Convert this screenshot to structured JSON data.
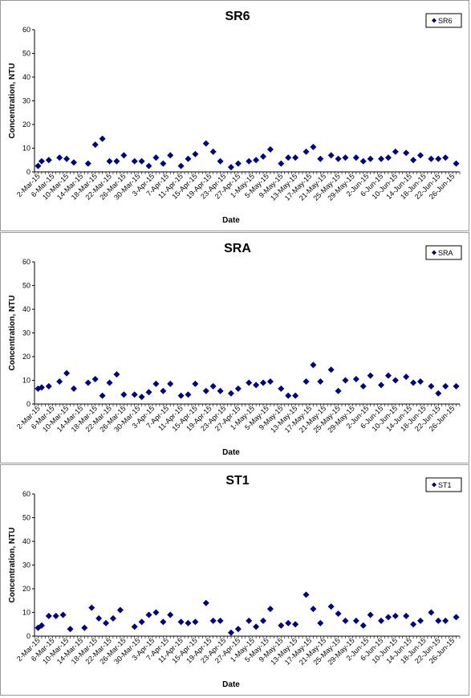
{
  "chart_data": [
    {
      "type": "scatter",
      "title": "SR6",
      "xlabel": "Date",
      "ylabel": "Concentration, NTU",
      "ylim": [
        0,
        60
      ],
      "yticks": [
        "0",
        "10",
        "20",
        "30",
        "40",
        "50",
        "60"
      ],
      "xtick_labels": [
        "2-Mar-15",
        "6-Mar-15",
        "10-Mar-15",
        "14-Mar-15",
        "18-Mar-15",
        "22-Mar-15",
        "26-Mar-15",
        "30-Mar-15",
        "3-Apr-15",
        "7-Apr-15",
        "11-Apr-15",
        "15-Apr-15",
        "19-Apr-15",
        "23-Apr-15",
        "27-Apr-15",
        "1-May-15",
        "5-May-15",
        "9-May-15",
        "13-May-15",
        "17-May-15",
        "21-May-15",
        "25-May-15",
        "29-May-15",
        "2-Jun-15",
        "6-Jun-15",
        "10-Jun-15",
        "14-Jun-15",
        "18-Jun-15",
        "22-Jun-15",
        "26-Jun-15"
      ],
      "grid": false,
      "legend": "top-right",
      "series": [
        {
          "name": "SR6",
          "color": "#000080",
          "points": [
            [
              "2-Mar-15",
              2.5
            ],
            [
              "3-Mar-15",
              4.5
            ],
            [
              "5-Mar-15",
              5
            ],
            [
              "8-Mar-15",
              6
            ],
            [
              "10-Mar-15",
              5.5
            ],
            [
              "12-Mar-15",
              4
            ],
            [
              "16-Mar-15",
              3.5
            ],
            [
              "18-Mar-15",
              11.5
            ],
            [
              "20-Mar-15",
              14
            ],
            [
              "22-Mar-15",
              4.5
            ],
            [
              "24-Mar-15",
              4.5
            ],
            [
              "26-Mar-15",
              7
            ],
            [
              "29-Mar-15",
              4.5
            ],
            [
              "31-Mar-15",
              4.5
            ],
            [
              "2-Apr-15",
              2.5
            ],
            [
              "4-Apr-15",
              6
            ],
            [
              "6-Apr-15",
              3.5
            ],
            [
              "8-Apr-15",
              7
            ],
            [
              "11-Apr-15",
              2.5
            ],
            [
              "13-Apr-15",
              5.5
            ],
            [
              "15-Apr-15",
              7.5
            ],
            [
              "18-Apr-15",
              12
            ],
            [
              "20-Apr-15",
              8.5
            ],
            [
              "22-Apr-15",
              4.5
            ],
            [
              "25-Apr-15",
              2
            ],
            [
              "27-Apr-15",
              3.5
            ],
            [
              "30-Apr-15",
              4.5
            ],
            [
              "2-May-15",
              5
            ],
            [
              "4-May-15",
              6.5
            ],
            [
              "6-May-15",
              9.5
            ],
            [
              "9-May-15",
              3.5
            ],
            [
              "11-May-15",
              6
            ],
            [
              "13-May-15",
              6
            ],
            [
              "16-May-15",
              8.5
            ],
            [
              "18-May-15",
              10.5
            ],
            [
              "20-May-15",
              5.5
            ],
            [
              "23-May-15",
              7
            ],
            [
              "25-May-15",
              5.5
            ],
            [
              "27-May-15",
              6
            ],
            [
              "30-May-15",
              6
            ],
            [
              "1-Jun-15",
              4.5
            ],
            [
              "3-Jun-15",
              5.5
            ],
            [
              "6-Jun-15",
              5.5
            ],
            [
              "8-Jun-15",
              6
            ],
            [
              "10-Jun-15",
              8.5
            ],
            [
              "13-Jun-15",
              8
            ],
            [
              "15-Jun-15",
              5
            ],
            [
              "17-Jun-15",
              7
            ],
            [
              "20-Jun-15",
              5.5
            ],
            [
              "22-Jun-15",
              5.5
            ],
            [
              "24-Jun-15",
              6
            ],
            [
              "27-Jun-15",
              3.5
            ]
          ]
        }
      ]
    },
    {
      "type": "scatter",
      "title": "SRA",
      "xlabel": "Date",
      "ylabel": "Concentration, NTU",
      "ylim": [
        0,
        60
      ],
      "yticks": [
        "0",
        "10",
        "20",
        "30",
        "40",
        "50",
        "60"
      ],
      "xtick_labels": [
        "2-Mar-15",
        "6-Mar-15",
        "10-Mar-15",
        "14-Mar-15",
        "18-Mar-15",
        "22-Mar-15",
        "26-Mar-15",
        "30-Mar-15",
        "3-Apr-15",
        "7-Apr-15",
        "11-Apr-15",
        "15-Apr-15",
        "19-Apr-15",
        "23-Apr-15",
        "27-Apr-15",
        "1-May-15",
        "5-May-15",
        "9-May-15",
        "13-May-15",
        "17-May-15",
        "21-May-15",
        "25-May-15",
        "29-May-15",
        "2-Jun-15",
        "6-Jun-15",
        "10-Jun-15",
        "14-Jun-15",
        "18-Jun-15",
        "22-Jun-15",
        "26-Jun-15"
      ],
      "grid": false,
      "legend": "top-right",
      "series": [
        {
          "name": "SRA",
          "color": "#000080",
          "points": [
            [
              "2-Mar-15",
              6.5
            ],
            [
              "3-Mar-15",
              7
            ],
            [
              "5-Mar-15",
              7.5
            ],
            [
              "8-Mar-15",
              9.5
            ],
            [
              "10-Mar-15",
              13
            ],
            [
              "12-Mar-15",
              6.5
            ],
            [
              "16-Mar-15",
              9
            ],
            [
              "18-Mar-15",
              10.5
            ],
            [
              "20-Mar-15",
              3.5
            ],
            [
              "22-Mar-15",
              9
            ],
            [
              "24-Mar-15",
              12.5
            ],
            [
              "26-Mar-15",
              4
            ],
            [
              "29-Mar-15",
              4
            ],
            [
              "31-Mar-15",
              3
            ],
            [
              "2-Apr-15",
              5
            ],
            [
              "4-Apr-15",
              8.5
            ],
            [
              "6-Apr-15",
              5.5
            ],
            [
              "8-Apr-15",
              8.5
            ],
            [
              "11-Apr-15",
              3.5
            ],
            [
              "13-Apr-15",
              4
            ],
            [
              "15-Apr-15",
              8.5
            ],
            [
              "18-Apr-15",
              5.5
            ],
            [
              "20-Apr-15",
              7.5
            ],
            [
              "22-Apr-15",
              5.5
            ],
            [
              "25-Apr-15",
              4.5
            ],
            [
              "27-Apr-15",
              6.5
            ],
            [
              "30-Apr-15",
              9
            ],
            [
              "2-May-15",
              8
            ],
            [
              "4-May-15",
              9
            ],
            [
              "6-May-15",
              9.5
            ],
            [
              "9-May-15",
              6.5
            ],
            [
              "11-May-15",
              3.5
            ],
            [
              "13-May-15",
              3.5
            ],
            [
              "16-May-15",
              9.5
            ],
            [
              "18-May-15",
              16.5
            ],
            [
              "20-May-15",
              9.5
            ],
            [
              "23-May-15",
              14.5
            ],
            [
              "25-May-15",
              5.5
            ],
            [
              "27-May-15",
              10
            ],
            [
              "30-May-15",
              10.5
            ],
            [
              "1-Jun-15",
              7.5
            ],
            [
              "3-Jun-15",
              12
            ],
            [
              "6-Jun-15",
              8
            ],
            [
              "8-Jun-15",
              12
            ],
            [
              "10-Jun-15",
              10
            ],
            [
              "13-Jun-15",
              11.5
            ],
            [
              "15-Jun-15",
              9
            ],
            [
              "17-Jun-15",
              9.5
            ],
            [
              "20-Jun-15",
              7.5
            ],
            [
              "22-Jun-15",
              4.5
            ],
            [
              "24-Jun-15",
              7.5
            ],
            [
              "27-Jun-15",
              7.5
            ]
          ]
        }
      ]
    },
    {
      "type": "scatter",
      "title": "ST1",
      "xlabel": "Date",
      "ylabel": "Concentration, NTU",
      "ylim": [
        0,
        60
      ],
      "yticks": [
        "0",
        "10",
        "20",
        "30",
        "40",
        "50",
        "60"
      ],
      "xtick_labels": [
        "2-Mar-15",
        "6-Mar-15",
        "10-Mar-15",
        "14-Mar-15",
        "18-Mar-15",
        "22-Mar-15",
        "26-Mar-15",
        "30-Mar-15",
        "3-Apr-15",
        "7-Apr-15",
        "11-Apr-15",
        "15-Apr-15",
        "19-Apr-15",
        "23-Apr-15",
        "27-Apr-15",
        "1-May-15",
        "5-May-15",
        "9-May-15",
        "13-May-15",
        "17-May-15",
        "21-May-15",
        "25-May-15",
        "29-May-15",
        "2-Jun-15",
        "6-Jun-15",
        "10-Jun-15",
        "14-Jun-15",
        "18-Jun-15",
        "22-Jun-15",
        "26-Jun-15"
      ],
      "grid": false,
      "legend": "top-right",
      "series": [
        {
          "name": "ST1",
          "color": "#000080",
          "points": [
            [
              "2-Mar-15",
              3.5
            ],
            [
              "3-Mar-15",
              4.5
            ],
            [
              "5-Mar-15",
              8.5
            ],
            [
              "7-Mar-15",
              8.5
            ],
            [
              "9-Mar-15",
              9
            ],
            [
              "11-Mar-15",
              3
            ],
            [
              "15-Mar-15",
              3.5
            ],
            [
              "17-Mar-15",
              12
            ],
            [
              "19-Mar-15",
              7.5
            ],
            [
              "21-Mar-15",
              5.5
            ],
            [
              "23-Mar-15",
              7.5
            ],
            [
              "25-Mar-15",
              11
            ],
            [
              "29-Mar-15",
              4
            ],
            [
              "31-Mar-15",
              6
            ],
            [
              "2-Apr-15",
              9
            ],
            [
              "4-Apr-15",
              10
            ],
            [
              "6-Apr-15",
              6
            ],
            [
              "8-Apr-15",
              9
            ],
            [
              "11-Apr-15",
              6
            ],
            [
              "13-Apr-15",
              5.5
            ],
            [
              "15-Apr-15",
              6
            ],
            [
              "18-Apr-15",
              14
            ],
            [
              "20-Apr-15",
              6.5
            ],
            [
              "22-Apr-15",
              6.5
            ],
            [
              "25-Apr-15",
              1.5
            ],
            [
              "27-Apr-15",
              3
            ],
            [
              "30-Apr-15",
              6.5
            ],
            [
              "2-May-15",
              4
            ],
            [
              "4-May-15",
              6.5
            ],
            [
              "6-May-15",
              11.5
            ],
            [
              "9-May-15",
              4.5
            ],
            [
              "11-May-15",
              5.5
            ],
            [
              "13-May-15",
              5
            ],
            [
              "16-May-15",
              17.5
            ],
            [
              "18-May-15",
              11.5
            ],
            [
              "20-May-15",
              5.5
            ],
            [
              "23-May-15",
              12.5
            ],
            [
              "25-May-15",
              9.5
            ],
            [
              "27-May-15",
              6.5
            ],
            [
              "30-May-15",
              6.5
            ],
            [
              "1-Jun-15",
              4.5
            ],
            [
              "3-Jun-15",
              9
            ],
            [
              "6-Jun-15",
              6.5
            ],
            [
              "8-Jun-15",
              8
            ],
            [
              "10-Jun-15",
              8.5
            ],
            [
              "13-Jun-15",
              8.5
            ],
            [
              "15-Jun-15",
              5
            ],
            [
              "17-Jun-15",
              6.5
            ],
            [
              "20-Jun-15",
              10
            ],
            [
              "22-Jun-15",
              6.5
            ],
            [
              "24-Jun-15",
              6.5
            ],
            [
              "27-Jun-15",
              8
            ]
          ]
        }
      ]
    }
  ]
}
